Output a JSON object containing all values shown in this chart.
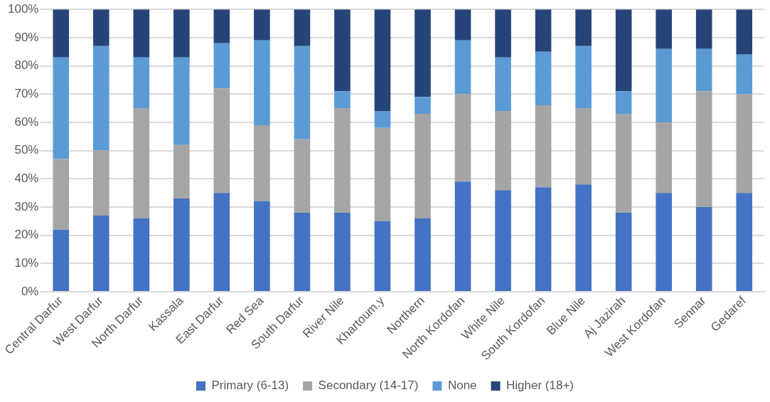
{
  "chart_data": {
    "type": "bar",
    "stacked": true,
    "categories": [
      "Central Darfur",
      "West Darfur",
      "North Darfur",
      "Kassala",
      "East Darfur",
      "Red Sea",
      "South Darfur",
      "River Nile",
      "Khartoum.y",
      "Northern",
      "North Kordofan",
      "White Nile",
      "South Kordofan",
      "Blue Nile",
      "Aj Jazirah",
      "West Kordofan",
      "Sennar",
      "Gedaref"
    ],
    "series": [
      {
        "name": "Primary (6-13)",
        "color": "#4472c4",
        "values": [
          22,
          27,
          26,
          33,
          35,
          32,
          28,
          28,
          25,
          26,
          39,
          36,
          37,
          38,
          28,
          35,
          30,
          35
        ]
      },
      {
        "name": "Secondary (14-17)",
        "color": "#a5a5a5",
        "values": [
          25,
          23,
          39,
          19,
          37,
          27,
          26,
          37,
          33,
          37,
          31,
          28,
          29,
          27,
          35,
          25,
          41,
          35
        ]
      },
      {
        "name": "None",
        "color": "#5b9bd5",
        "values": [
          36,
          37,
          18,
          31,
          16,
          30,
          33,
          6,
          6,
          6,
          19,
          19,
          19,
          22,
          8,
          26,
          15,
          14
        ]
      },
      {
        "name": "Higher (18+)",
        "color": "#264478",
        "values": [
          17,
          13,
          17,
          17,
          12,
          11,
          13,
          29,
          36,
          31,
          11,
          17,
          15,
          13,
          29,
          14,
          14,
          16
        ]
      }
    ],
    "ylim": [
      0,
      100
    ],
    "yticks": [
      {
        "value": 0,
        "label": "0%"
      },
      {
        "value": 10,
        "label": "10%"
      },
      {
        "value": 20,
        "label": "20%"
      },
      {
        "value": 30,
        "label": "30%"
      },
      {
        "value": 40,
        "label": "40%"
      },
      {
        "value": 50,
        "label": "50%"
      },
      {
        "value": 60,
        "label": "60%"
      },
      {
        "value": 70,
        "label": "70%"
      },
      {
        "value": 80,
        "label": "80%"
      },
      {
        "value": 90,
        "label": "90%"
      },
      {
        "value": 100,
        "label": "100%"
      }
    ],
    "grid": "y",
    "legend": "bottom"
  }
}
